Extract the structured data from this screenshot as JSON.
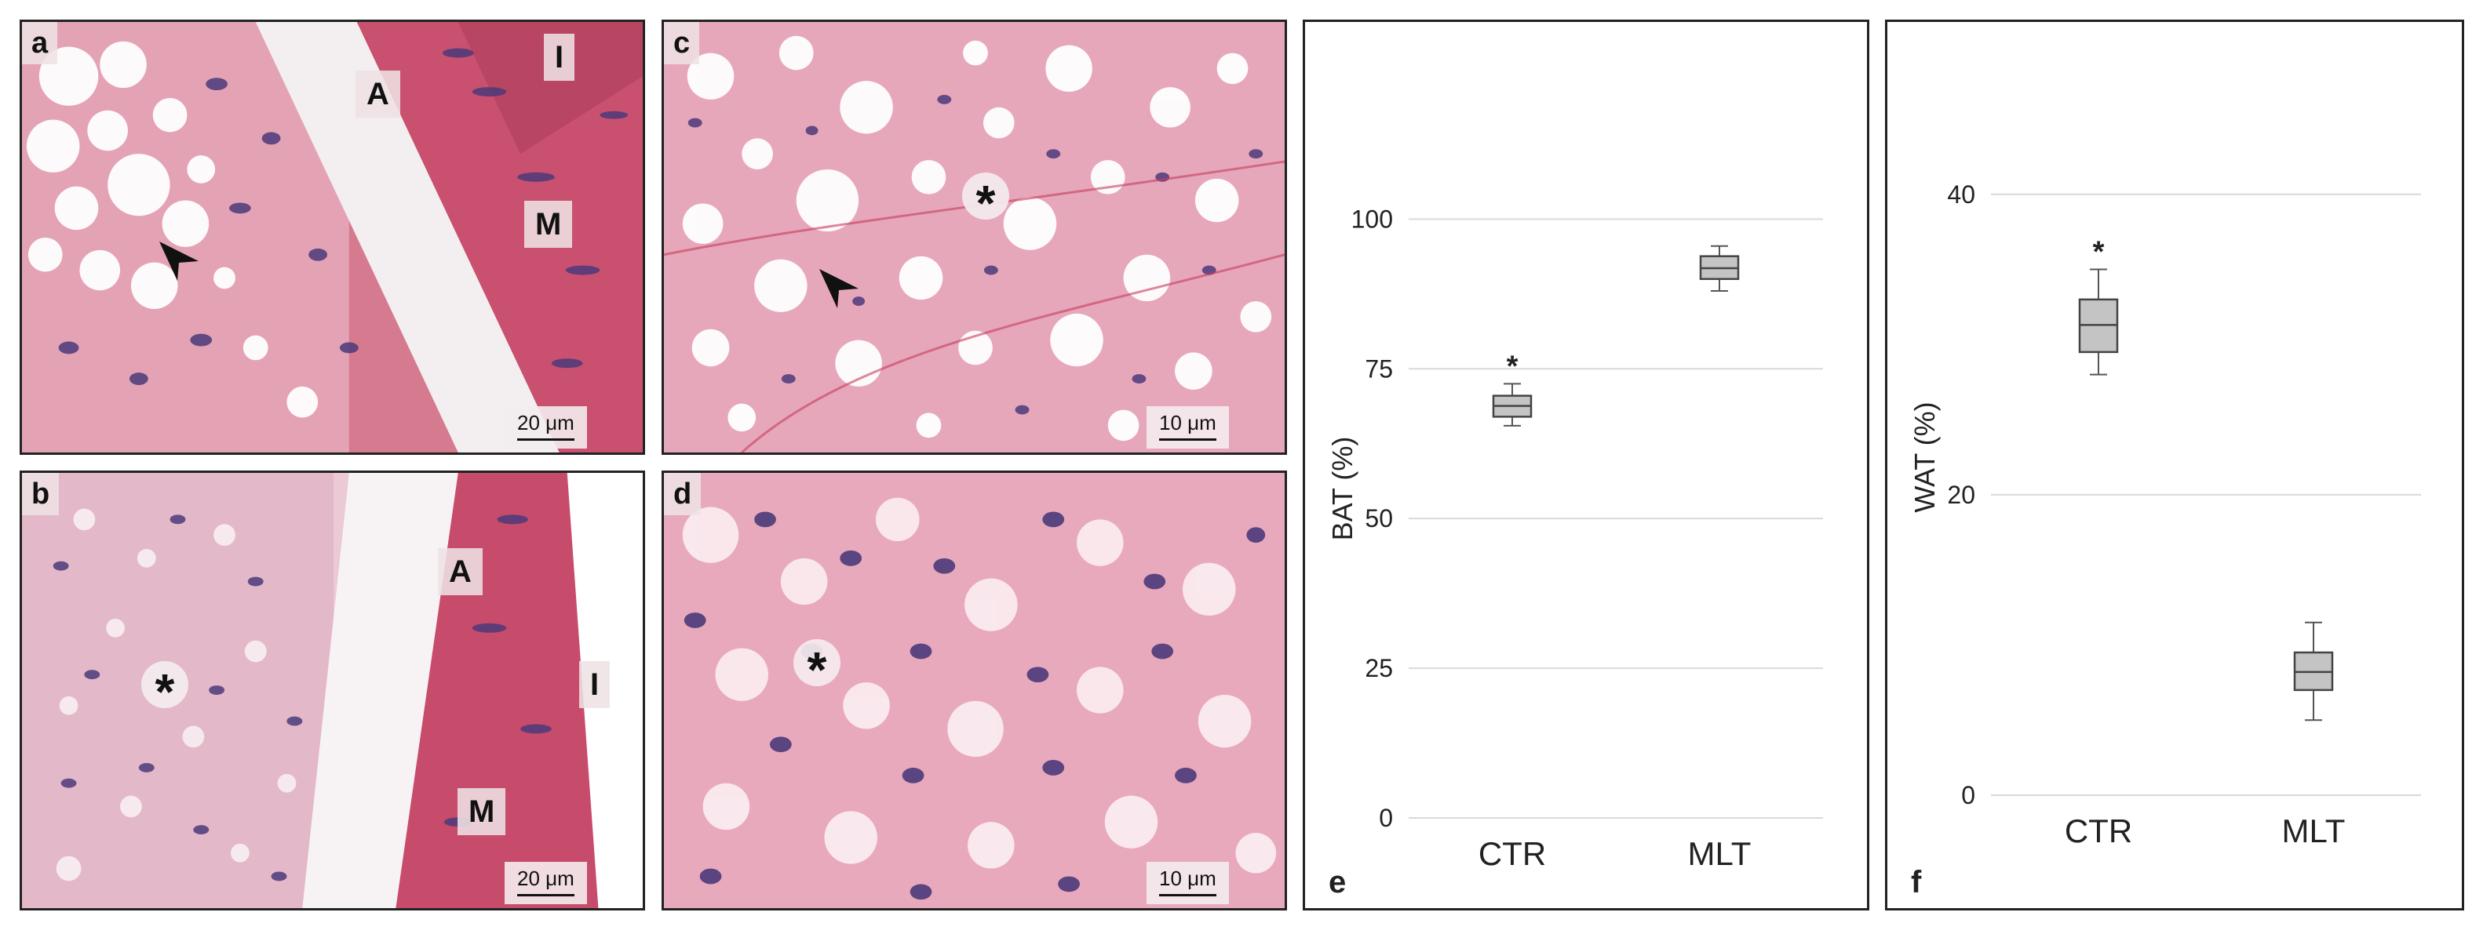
{
  "micrographs": [
    {
      "id": "a",
      "labels": [
        "A",
        "I",
        "M"
      ],
      "scale": "20 μm",
      "has_arrowhead": true,
      "has_star": false
    },
    {
      "id": "b",
      "labels": [
        "A",
        "I",
        "M"
      ],
      "scale": "20 μm",
      "has_arrowhead": false,
      "has_star": true
    },
    {
      "id": "c",
      "labels": [],
      "scale": "10 μm",
      "has_arrowhead": true,
      "has_star": true
    },
    {
      "id": "d",
      "labels": [],
      "scale": "10 μm",
      "has_arrowhead": false,
      "has_star": true
    }
  ],
  "star_symbol": "*",
  "colors": {
    "stain_pink": "#d56e88",
    "stain_light": "#f2e4ea",
    "nucleus": "#4b3a7a",
    "box_fill": "#c4c4c4",
    "grid": "#d9d9d9",
    "axis_text": "#222222"
  },
  "chart_data": [
    {
      "panel": "e",
      "type": "box",
      "ylabel": "BAT (%)",
      "categories": [
        "CTR",
        "MLT"
      ],
      "ylim": [
        0,
        110
      ],
      "yticks": [
        0,
        25,
        50,
        75,
        100
      ],
      "grid": true,
      "boxes": [
        {
          "category": "CTR",
          "min": 65.5,
          "q1": 67.0,
          "median": 68.8,
          "q3": 70.5,
          "max": 72.5,
          "significance": "*"
        },
        {
          "category": "MLT",
          "min": 88.0,
          "q1": 90.0,
          "median": 91.8,
          "q3": 93.8,
          "max": 95.5,
          "significance": ""
        }
      ]
    },
    {
      "panel": "f",
      "type": "box",
      "ylabel": "WAT (%)",
      "categories": [
        "CTR",
        "MLT"
      ],
      "ylim": [
        0,
        45
      ],
      "yticks": [
        0,
        20,
        40
      ],
      "grid": true,
      "boxes": [
        {
          "category": "CTR",
          "min": 28.0,
          "q1": 29.5,
          "median": 31.3,
          "q3": 33.0,
          "max": 35.0,
          "significance": "*"
        },
        {
          "category": "MLT",
          "min": 5.0,
          "q1": 7.0,
          "median": 8.2,
          "q3": 9.5,
          "max": 11.5,
          "significance": ""
        }
      ]
    }
  ]
}
